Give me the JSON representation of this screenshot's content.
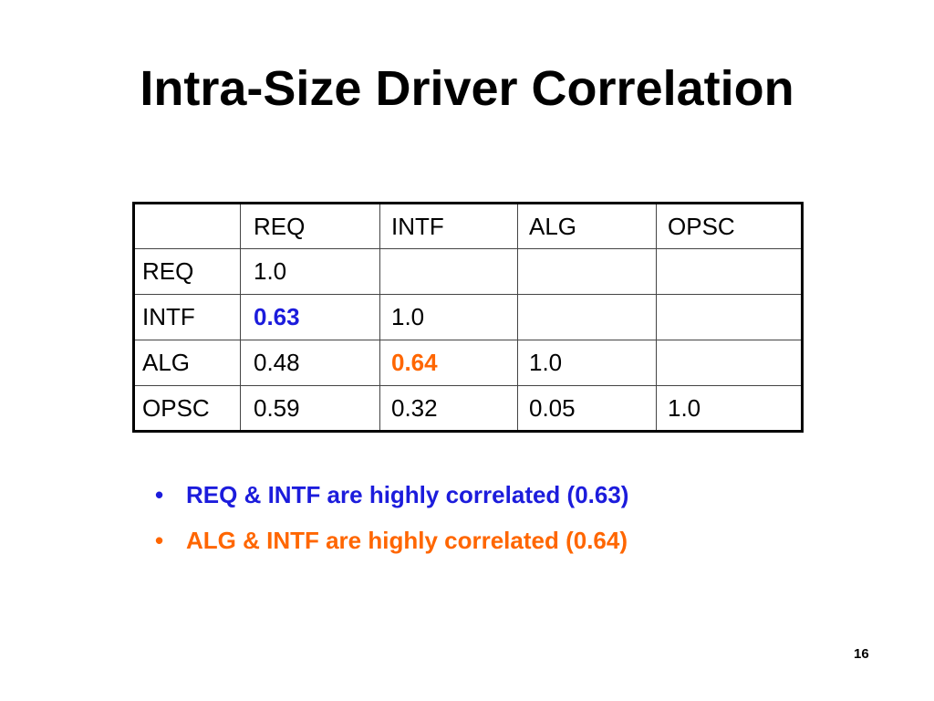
{
  "title": "Intra-Size Driver Correlation",
  "table": {
    "header": [
      null,
      "REQ",
      "INTF",
      "ALG",
      "OPSC"
    ],
    "rows": [
      [
        "REQ",
        "1.0",
        null,
        null,
        null
      ],
      [
        "INTF",
        "0.63",
        "1.0",
        null,
        null
      ],
      [
        "ALG",
        "0.48",
        "0.64",
        "1.0",
        null
      ],
      [
        "OPSC",
        "0.59",
        "0.32",
        "0.05",
        "1.0"
      ]
    ]
  },
  "bullets": [
    "REQ & INTF are highly correlated (0.63)",
    "ALG & INTF are highly correlated (0.64)"
  ],
  "page_number": "16"
}
